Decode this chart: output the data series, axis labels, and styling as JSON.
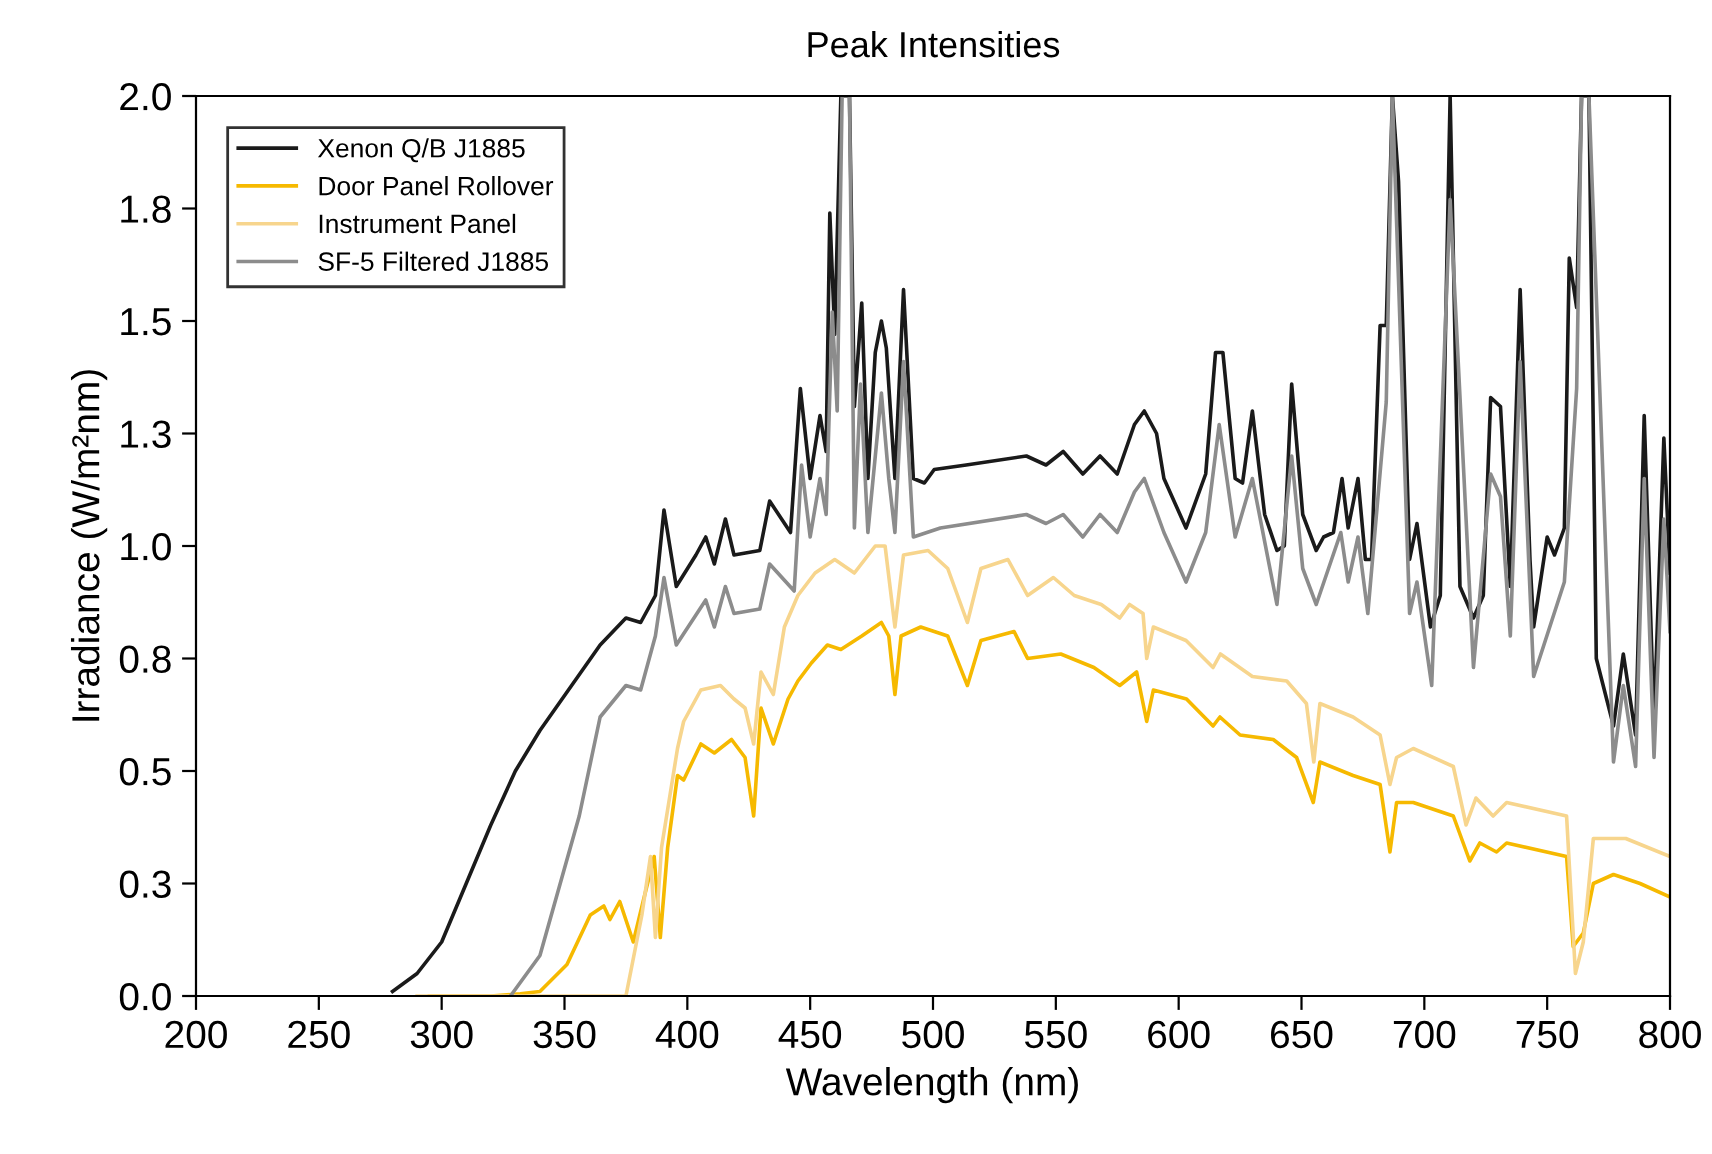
{
  "chart_data": {
    "type": "line",
    "title": "Peak Intensities",
    "xlabel": "Wavelength (nm)",
    "ylabel": "Irradiance (W/m²nm)",
    "xlim": [
      200,
      800
    ],
    "xticks": [
      200,
      250,
      300,
      350,
      400,
      450,
      500,
      550,
      600,
      650,
      700,
      750,
      800
    ],
    "ylim": [
      0,
      2.0
    ],
    "yticks": [
      {
        "value": 0,
        "label": "0.0"
      },
      {
        "value": 0.25,
        "label": "0.3"
      },
      {
        "value": 0.5,
        "label": "0.5"
      },
      {
        "value": 0.75,
        "label": "0.8"
      },
      {
        "value": 1.0,
        "label": "1.0"
      },
      {
        "value": 1.25,
        "label": "1.3"
      },
      {
        "value": 1.5,
        "label": "1.5"
      },
      {
        "value": 1.75,
        "label": "1.8"
      },
      {
        "value": 2.0,
        "label": "2.0"
      }
    ],
    "grid": false,
    "legend": "top left",
    "marker": "none",
    "line_style": "solid",
    "series": [
      {
        "name": "Xenon Q/B J1885",
        "color": "#1a1a1a",
        "x": [
          280,
          290,
          300,
          310,
          320,
          330,
          340,
          364.5,
          375,
          381,
          387,
          390.5,
          395.5,
          403.5,
          407.5,
          411,
          415.5,
          419,
          429.5,
          433.5,
          442,
          446,
          450,
          454,
          456.5,
          458,
          460,
          462.5,
          466,
          468,
          471,
          473.5,
          476.5,
          479,
          481,
          484.5,
          488,
          492,
          496.5,
          500.5,
          513.5,
          538,
          546,
          553,
          561,
          568,
          575,
          582,
          586,
          591,
          594,
          603,
          611,
          615,
          618,
          623,
          626,
          630,
          635,
          640,
          643,
          646,
          650.5,
          656,
          659,
          663,
          666.5,
          669,
          673,
          676,
          678.5,
          682,
          684.5,
          687,
          689.5,
          694,
          697,
          702.5,
          706.5,
          710.5,
          714.5,
          720,
          724,
          727,
          731,
          735,
          739,
          743,
          744.5,
          750,
          753,
          757,
          759,
          762,
          764,
          767,
          770,
          777,
          781,
          786,
          789.5,
          793.5,
          797.5,
          800
        ],
        "values": [
          0.01,
          0.05,
          0.12,
          0.25,
          0.38,
          0.5,
          0.59,
          0.78,
          0.84,
          0.83,
          0.89,
          1.08,
          0.91,
          0.98,
          1.02,
          0.96,
          1.06,
          0.98,
          0.99,
          1.1,
          1.03,
          1.35,
          1.15,
          1.29,
          1.21,
          1.74,
          1.47,
          2.0,
          2.0,
          1.31,
          1.54,
          1.15,
          1.43,
          1.5,
          1.44,
          1.15,
          1.57,
          1.15,
          1.14,
          1.17,
          1.18,
          1.2,
          1.18,
          1.21,
          1.16,
          1.2,
          1.16,
          1.27,
          1.3,
          1.25,
          1.15,
          1.04,
          1.16,
          1.43,
          1.43,
          1.15,
          1.14,
          1.3,
          1.07,
          0.99,
          1.0,
          1.36,
          1.07,
          0.99,
          1.02,
          1.03,
          1.15,
          1.04,
          1.15,
          0.97,
          0.97,
          1.49,
          1.49,
          2.0,
          1.81,
          0.97,
          1.05,
          0.82,
          0.89,
          2.0,
          0.91,
          0.84,
          0.89,
          1.33,
          1.31,
          0.91,
          1.57,
          0.97,
          0.82,
          1.02,
          0.98,
          1.04,
          1.64,
          1.53,
          2.0,
          2.0,
          0.75,
          0.6,
          0.76,
          0.58,
          1.29,
          0.61,
          1.24,
          0.94
        ]
      },
      {
        "name": "Door Panel Rollover",
        "color": "#f6b900",
        "x": [
          295,
          320,
          332,
          340,
          351,
          360.5,
          366,
          368.5,
          372.5,
          378,
          382,
          386.5,
          389,
          392,
          396,
          398.5,
          405.5,
          411,
          418,
          423.5,
          427,
          430,
          435,
          441,
          445,
          450.5,
          457,
          462.5,
          471,
          479,
          482,
          484.5,
          487,
          495,
          506,
          514,
          519.5,
          533,
          538.5,
          552,
          565.5,
          576,
          582.9,
          587,
          589.7,
          603.2,
          614,
          616.8,
          625,
          638.5,
          648,
          654.8,
          657.5,
          671,
          682,
          686,
          688.7,
          695.5,
          711.8,
          718.5,
          722.6,
          729.4,
          733.5,
          757.9,
          760.6,
          764.7,
          768.8,
          777,
          787.8,
          800
        ],
        "values": [
          0,
          0,
          0.005,
          0.01,
          0.07,
          0.18,
          0.2,
          0.17,
          0.21,
          0.12,
          0.21,
          0.31,
          0.13,
          0.33,
          0.49,
          0.48,
          0.56,
          0.54,
          0.57,
          0.53,
          0.4,
          0.64,
          0.56,
          0.66,
          0.7,
          0.74,
          0.78,
          0.77,
          0.8,
          0.83,
          0.8,
          0.67,
          0.8,
          0.82,
          0.8,
          0.69,
          0.79,
          0.81,
          0.75,
          0.76,
          0.73,
          0.69,
          0.72,
          0.61,
          0.68,
          0.66,
          0.6,
          0.62,
          0.58,
          0.57,
          0.53,
          0.43,
          0.52,
          0.49,
          0.47,
          0.32,
          0.43,
          0.43,
          0.4,
          0.3,
          0.34,
          0.32,
          0.34,
          0.31,
          0.11,
          0.14,
          0.25,
          0.27,
          0.25,
          0.22
        ]
      },
      {
        "name": "Instrument Panel",
        "color": "#f7d58d",
        "x": [
          290,
          375,
          381.5,
          385,
          387,
          389.5,
          396,
          398.5,
          405.5,
          413.5,
          419,
          423.5,
          427,
          430,
          435,
          439.5,
          445,
          452,
          460,
          468,
          476.5,
          480.5,
          484.5,
          488,
          498,
          506,
          514,
          519.5,
          530.5,
          538.5,
          549,
          557.5,
          568.5,
          576,
          580,
          585.5,
          587,
          589.7,
          603,
          614,
          617,
          630,
          644,
          652,
          655,
          657.5,
          671,
          682,
          686,
          688.7,
          695.5,
          711.8,
          717,
          721,
          728,
          733.5,
          757.9,
          761.5,
          764.7,
          768.8,
          782,
          800
        ],
        "values": [
          0,
          0,
          0.18,
          0.31,
          0.13,
          0.33,
          0.55,
          0.61,
          0.68,
          0.69,
          0.66,
          0.64,
          0.56,
          0.72,
          0.67,
          0.82,
          0.89,
          0.94,
          0.97,
          0.94,
          1.0,
          1.0,
          0.82,
          0.98,
          0.99,
          0.95,
          0.83,
          0.95,
          0.97,
          0.89,
          0.93,
          0.89,
          0.87,
          0.84,
          0.87,
          0.85,
          0.75,
          0.82,
          0.79,
          0.73,
          0.76,
          0.71,
          0.7,
          0.65,
          0.52,
          0.65,
          0.62,
          0.58,
          0.47,
          0.53,
          0.55,
          0.51,
          0.38,
          0.44,
          0.4,
          0.43,
          0.4,
          0.05,
          0.12,
          0.35,
          0.35,
          0.31
        ]
      },
      {
        "name": "SF-5 Filtered J1885",
        "color": "#8c8c8c",
        "x": [
          328,
          340,
          356,
          364.5,
          375,
          381,
          387,
          390.5,
          395.5,
          407.5,
          411,
          415.5,
          419,
          429.5,
          433.5,
          443.5,
          446.5,
          450,
          454,
          456.5,
          459,
          461,
          463,
          466,
          468,
          470.5,
          473.5,
          479,
          482,
          484.5,
          488,
          492,
          503,
          538,
          546,
          553,
          561,
          568,
          575,
          582,
          586,
          594,
          603,
          611,
          616.5,
          623,
          630,
          640,
          646,
          650.5,
          656,
          666,
          669,
          673,
          677,
          684.5,
          687,
          694,
          697,
          703,
          710.5,
          720,
          727,
          731,
          735,
          739,
          744.5,
          757,
          762,
          764,
          767,
          777,
          781,
          786,
          789.5,
          793.5,
          797.5,
          800
        ],
        "values": [
          0,
          0.09,
          0.4,
          0.62,
          0.69,
          0.68,
          0.8,
          0.93,
          0.78,
          0.88,
          0.82,
          0.91,
          0.85,
          0.86,
          0.96,
          0.9,
          1.18,
          1.02,
          1.15,
          1.07,
          1.52,
          1.3,
          2.0,
          2.0,
          1.04,
          1.36,
          1.03,
          1.34,
          1.15,
          1.03,
          1.41,
          1.02,
          1.04,
          1.07,
          1.05,
          1.07,
          1.02,
          1.07,
          1.03,
          1.12,
          1.15,
          1.03,
          0.92,
          1.03,
          1.27,
          1.02,
          1.15,
          0.87,
          1.2,
          0.95,
          0.87,
          1.03,
          0.92,
          1.02,
          0.85,
          1.32,
          2.0,
          0.85,
          0.92,
          0.69,
          1.77,
          0.73,
          1.16,
          1.11,
          0.8,
          1.41,
          0.71,
          0.92,
          1.35,
          2.0,
          2.0,
          0.52,
          0.69,
          0.51,
          1.15,
          0.53,
          1.06,
          0.81
        ]
      }
    ]
  }
}
